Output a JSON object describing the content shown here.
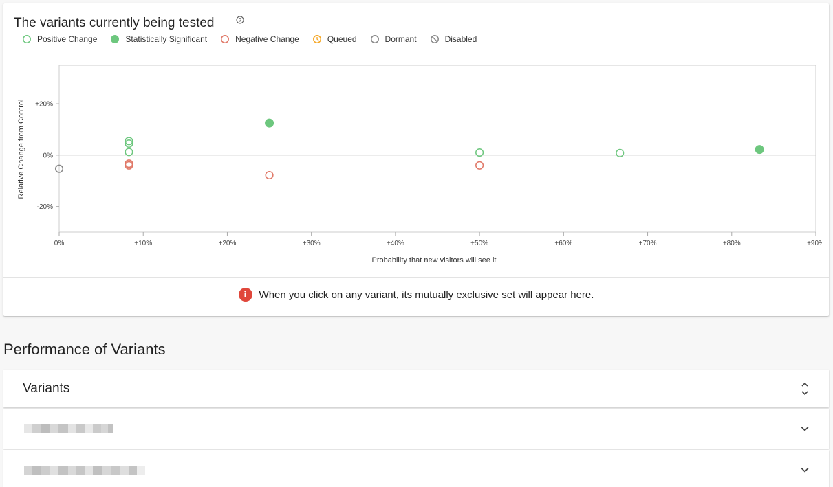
{
  "card": {
    "title": "The variants currently being tested",
    "legend": [
      {
        "label": "Positive Change",
        "icon": "positive-circle-icon",
        "color": "#6dc77e"
      },
      {
        "label": "Statistically Significant",
        "icon": "significant-dot-icon",
        "color": "#6dc77e"
      },
      {
        "label": "Negative Change",
        "icon": "negative-circle-icon",
        "color": "#e07766"
      },
      {
        "label": "Queued",
        "icon": "queued-clock-icon",
        "color": "#f5a623"
      },
      {
        "label": "Dormant",
        "icon": "dormant-circle-icon",
        "color": "#888888"
      },
      {
        "label": "Disabled",
        "icon": "disabled-ban-icon",
        "color": "#888888"
      }
    ],
    "info_text": "When you click on any variant, its mutually exclusive set will appear here."
  },
  "chart_data": {
    "type": "scatter",
    "xlabel": "Probability that new visitors will see it",
    "ylabel": "Relative Change from Control",
    "xlim": [
      0,
      90
    ],
    "ylim": [
      -30,
      35
    ],
    "x_ticks": [
      "0%",
      "+10%",
      "+20%",
      "+30%",
      "+40%",
      "+50%",
      "+60%",
      "+70%",
      "+80%",
      "+90%"
    ],
    "y_ticks": [
      "+20%",
      "0%",
      "-20%"
    ],
    "y_tick_values": [
      20,
      0,
      -20
    ],
    "grid": false,
    "series": [
      {
        "name": "Positive Change",
        "color": "#6dc77e",
        "filled": false,
        "points": [
          [
            8.3,
            5.5
          ],
          [
            8.3,
            4.5
          ],
          [
            8.3,
            1.2
          ],
          [
            50,
            1
          ],
          [
            66.7,
            0.8
          ]
        ]
      },
      {
        "name": "Statistically Significant",
        "color": "#6dc77e",
        "filled": true,
        "points": [
          [
            25,
            12.5
          ],
          [
            83.3,
            2.2
          ]
        ]
      },
      {
        "name": "Negative Change",
        "color": "#e07766",
        "filled": false,
        "points": [
          [
            8.3,
            -3.3
          ],
          [
            8.3,
            -4
          ],
          [
            25,
            -7.8
          ],
          [
            50,
            -4
          ]
        ]
      },
      {
        "name": "Dormant",
        "color": "#888888",
        "filled": false,
        "points": [
          [
            0,
            -5.3
          ]
        ]
      }
    ]
  },
  "section": {
    "title": "Performance of Variants"
  },
  "table": {
    "header_label": "Variants",
    "rows": [
      {
        "id": "variant-row-1"
      },
      {
        "id": "variant-row-2"
      }
    ]
  }
}
